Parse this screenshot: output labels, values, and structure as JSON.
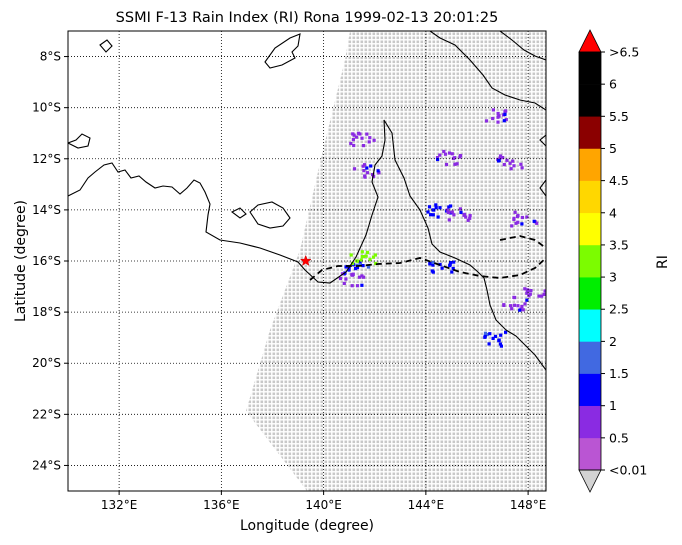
{
  "title": "SSMI F-13 Rain Index (RI) Rona 1999-02-13 20:01:25",
  "xlabel": "Longitude (degree)",
  "ylabel": "Latitude (degree)",
  "colorbar": {
    "label": "RI",
    "tick_labels": [
      "<0.01",
      "0.5",
      "1",
      "1.5",
      "2",
      "2.5",
      "3",
      "3.5",
      "4",
      "4.5",
      "5",
      "5.5",
      "6",
      ">6.5"
    ],
    "colors": [
      "#ba55d3",
      "#8a2be2",
      "#0000ff",
      "#4169e1",
      "#00ffff",
      "#00ee00",
      "#7cfc00",
      "#ffff00",
      "#ffd700",
      "#ffa500",
      "#8b0000",
      "#000000",
      "#000000"
    ],
    "under_color": "#d3d3d3",
    "over_color": "#ff0000"
  },
  "chart_data": {
    "type": "map",
    "xlim": [
      130,
      148.7
    ],
    "ylim": [
      -25,
      -7
    ],
    "x_ticks": [
      132,
      136,
      140,
      144,
      148
    ],
    "x_tick_labels": [
      "132°E",
      "136°E",
      "140°E",
      "144°E",
      "148°E"
    ],
    "y_ticks": [
      -8,
      -10,
      -12,
      -14,
      -16,
      -18,
      -20,
      -22,
      -24
    ],
    "y_tick_labels": [
      "8°S",
      "10°S",
      "12°S",
      "14°S",
      "16°S",
      "18°S",
      "20°S",
      "22°S",
      "24°S"
    ],
    "grid": "dotted",
    "storm_position": {
      "lon": 139.3,
      "lat": -16.0,
      "marker": "red-star"
    },
    "swath": {
      "left_edge": [
        [
          137.1,
          -22.0
        ],
        [
          140.7,
          -7.0
        ]
      ],
      "right_edge": [
        [
          148.7,
          -7.0
        ],
        [
          148.7,
          -25.0
        ]
      ],
      "bottom_lon": 137.1
    },
    "rain_clusters": [
      {
        "lon": 141.2,
        "lat": -16.2,
        "ri": 1.0
      },
      {
        "lon": 141.5,
        "lat": -15.8,
        "ri": 3.0
      },
      {
        "lon": 141.1,
        "lat": -16.7,
        "ri": 0.5
      },
      {
        "lon": 141.5,
        "lat": -11.2,
        "ri": 0.5
      },
      {
        "lon": 141.6,
        "lat": -12.4,
        "ri": 0.5
      },
      {
        "lon": 144.5,
        "lat": -14.0,
        "ri": 1.0
      },
      {
        "lon": 145.2,
        "lat": -14.1,
        "ri": 0.5
      },
      {
        "lon": 144.9,
        "lat": -11.9,
        "ri": 0.5
      },
      {
        "lon": 147.2,
        "lat": -12.1,
        "ri": 0.5
      },
      {
        "lon": 146.8,
        "lat": -10.3,
        "ri": 0.5
      },
      {
        "lon": 147.8,
        "lat": -14.3,
        "ri": 0.5
      },
      {
        "lon": 148.3,
        "lat": -17.2,
        "ri": 0.5
      },
      {
        "lon": 146.6,
        "lat": -19.0,
        "ri": 1.0
      },
      {
        "lon": 147.4,
        "lat": -17.6,
        "ri": 0.5
      },
      {
        "lon": 144.6,
        "lat": -16.2,
        "ri": 1.0
      }
    ]
  }
}
